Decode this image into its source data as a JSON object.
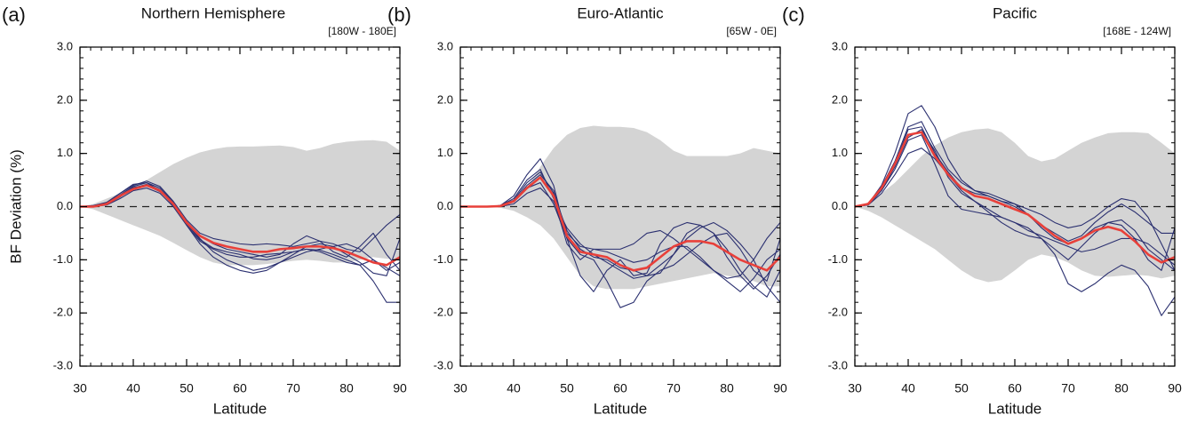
{
  "chart_data": [
    {
      "type": "line",
      "panel_label": "(a)",
      "title": "Northern Hemisphere",
      "region": "[180W - 180E]",
      "xlabel": "Latitude",
      "ylabel": "BF Deviation (%)",
      "xlim": [
        30,
        90
      ],
      "xticks": [
        30,
        40,
        50,
        60,
        70,
        80,
        90
      ],
      "xminor_step": 2,
      "ylim": [
        -3,
        3
      ],
      "yticks": [
        {
          "value": 3,
          "label": "3.0"
        },
        {
          "value": 2,
          "label": "2.0"
        },
        {
          "value": 1,
          "label": "1.0"
        },
        {
          "value": 0,
          "label": "0.0"
        },
        {
          "value": -1,
          "label": "-1.0"
        },
        {
          "value": -2,
          "label": "-2.0"
        },
        {
          "value": -3,
          "label": "-3.0"
        }
      ],
      "yminor_step": 0.2,
      "grid": false,
      "zero_line": {
        "value": 0,
        "dashed": true
      },
      "x": [
        30,
        32.5,
        35,
        37.5,
        40,
        42.5,
        45,
        47.5,
        50,
        52.5,
        55,
        57.5,
        60,
        62.5,
        65,
        67.5,
        70,
        72.5,
        75,
        77.5,
        80,
        82.5,
        85,
        87.5,
        90
      ],
      "band": {
        "color": "#d4d4d4",
        "upper": [
          0,
          0.05,
          0.15,
          0.25,
          0.38,
          0.5,
          0.65,
          0.8,
          0.92,
          1.02,
          1.08,
          1.12,
          1.13,
          1.13,
          1.14,
          1.15,
          1.12,
          1.05,
          1.1,
          1.18,
          1.22,
          1.24,
          1.25,
          1.22,
          1.05
        ],
        "lower": [
          0,
          -0.05,
          -0.15,
          -0.25,
          -0.35,
          -0.45,
          -0.55,
          -0.68,
          -0.82,
          -0.95,
          -1.05,
          -1.1,
          -1.1,
          -1.1,
          -1.08,
          -1.05,
          -1.02,
          -1.0,
          -1.02,
          -1.05,
          -1.05,
          -1.0,
          -0.95,
          -0.98,
          -1.0
        ]
      },
      "series": [
        {
          "color": "#2b3070",
          "values": [
            0,
            0.02,
            0.08,
            0.25,
            0.4,
            0.48,
            0.38,
            0.1,
            -0.25,
            -0.5,
            -0.6,
            -0.65,
            -0.7,
            -0.72,
            -0.7,
            -0.72,
            -0.75,
            -0.7,
            -0.65,
            -0.7,
            -0.8,
            -0.85,
            -0.6,
            -0.35,
            -0.15
          ]
        },
        {
          "color": "#2b3070",
          "values": [
            0,
            0,
            0.03,
            0.15,
            0.3,
            0.35,
            0.25,
            0,
            -0.35,
            -0.65,
            -0.8,
            -0.9,
            -0.95,
            -0.95,
            -0.9,
            -0.88,
            -0.85,
            -0.8,
            -0.82,
            -0.9,
            -1.0,
            -1.1,
            -1.4,
            -1.8,
            -1.8
          ]
        },
        {
          "color": "#2b3070",
          "values": [
            0,
            0.01,
            0.06,
            0.22,
            0.38,
            0.45,
            0.35,
            0.08,
            -0.3,
            -0.6,
            -0.85,
            -1.0,
            -1.1,
            -1.2,
            -1.15,
            -1.05,
            -0.95,
            -0.85,
            -0.8,
            -0.75,
            -0.7,
            -0.8,
            -1.0,
            -1.2,
            -1.05
          ]
        },
        {
          "color": "#2b3070",
          "values": [
            0,
            0,
            0.04,
            0.18,
            0.35,
            0.42,
            0.32,
            0.05,
            -0.35,
            -0.7,
            -0.95,
            -1.1,
            -1.2,
            -1.25,
            -1.2,
            -1.05,
            -0.9,
            -0.75,
            -0.7,
            -0.75,
            -0.9,
            -1.05,
            -1.25,
            -1.3,
            -0.6
          ]
        },
        {
          "color": "#2b3070",
          "values": [
            0,
            0.02,
            0.07,
            0.25,
            0.42,
            0.45,
            0.3,
            0.02,
            -0.28,
            -0.55,
            -0.7,
            -0.8,
            -0.85,
            -0.9,
            -0.95,
            -0.9,
            -0.7,
            -0.55,
            -0.65,
            -0.85,
            -0.95,
            -0.75,
            -0.5,
            -0.9,
            -1.2
          ]
        },
        {
          "color": "#2b3070",
          "values": [
            0,
            0,
            0.05,
            0.2,
            0.36,
            0.4,
            0.28,
            0.05,
            -0.32,
            -0.62,
            -0.78,
            -0.85,
            -0.9,
            -0.98,
            -1.0,
            -0.95,
            -0.85,
            -0.8,
            -0.85,
            -0.95,
            -1.05,
            -1.1,
            -1.0,
            -1.15,
            -1.3
          ]
        },
        {
          "color": "#e8403a",
          "values": [
            0,
            0,
            0.05,
            0.2,
            0.33,
            0.4,
            0.3,
            0.05,
            -0.3,
            -0.55,
            -0.68,
            -0.75,
            -0.8,
            -0.85,
            -0.85,
            -0.8,
            -0.78,
            -0.75,
            -0.75,
            -0.78,
            -0.85,
            -0.95,
            -1.05,
            -1.1,
            -0.95
          ]
        }
      ]
    },
    {
      "type": "line",
      "panel_label": "(b)",
      "title": "Euro-Atlantic",
      "region": "[65W - 0E]",
      "xlabel": "Latitude",
      "xlim": [
        30,
        90
      ],
      "xticks": [
        30,
        40,
        50,
        60,
        70,
        80,
        90
      ],
      "xminor_step": 2,
      "ylim": [
        -3,
        3
      ],
      "yticks": [
        {
          "value": 3,
          "label": "3.0"
        },
        {
          "value": 2,
          "label": "2.0"
        },
        {
          "value": 1,
          "label": "1.0"
        },
        {
          "value": 0,
          "label": "0.0"
        },
        {
          "value": -1,
          "label": "-1.0"
        },
        {
          "value": -2,
          "label": "-2.0"
        },
        {
          "value": -3,
          "label": "-3.0"
        }
      ],
      "yminor_step": 0.2,
      "grid": false,
      "zero_line": {
        "value": 0,
        "dashed": true
      },
      "x": [
        30,
        32.5,
        35,
        37.5,
        40,
        42.5,
        45,
        47.5,
        50,
        52.5,
        55,
        57.5,
        60,
        62.5,
        65,
        67.5,
        70,
        72.5,
        75,
        77.5,
        80,
        82.5,
        85,
        87.5,
        90
      ],
      "band": {
        "color": "#d4d4d4",
        "upper": [
          0,
          0,
          0,
          0.02,
          0.08,
          0.35,
          0.75,
          1.1,
          1.35,
          1.48,
          1.52,
          1.5,
          1.5,
          1.48,
          1.4,
          1.25,
          1.05,
          0.95,
          0.95,
          0.95,
          0.95,
          1.0,
          1.1,
          1.05,
          1.0
        ],
        "lower": [
          0,
          0,
          0,
          -0.02,
          -0.08,
          -0.2,
          -0.35,
          -0.6,
          -0.95,
          -1.3,
          -1.5,
          -1.55,
          -1.55,
          -1.55,
          -1.5,
          -1.45,
          -1.4,
          -1.35,
          -1.3,
          -1.25,
          -1.3,
          -1.35,
          -1.4,
          -1.5,
          -1.5
        ]
      },
      "series": [
        {
          "color": "#2b3070",
          "values": [
            0,
            0,
            0,
            0.02,
            0.2,
            0.6,
            0.9,
            0.4,
            -0.6,
            -1.3,
            -1.6,
            -1.2,
            -1.0,
            -1.3,
            -1.25,
            -0.7,
            -0.4,
            -0.3,
            -0.35,
            -0.5,
            -0.8,
            -1.2,
            -1.5,
            -1.7,
            -1.2
          ]
        },
        {
          "color": "#2b3070",
          "values": [
            0,
            0,
            0,
            0.01,
            0.1,
            0.35,
            0.45,
            0.05,
            -0.6,
            -0.9,
            -1.0,
            -1.4,
            -1.9,
            -1.8,
            -1.4,
            -1.2,
            -1.1,
            -0.9,
            -0.7,
            -0.55,
            -0.5,
            -0.8,
            -1.2,
            -1.4,
            -0.6
          ]
        },
        {
          "color": "#2b3070",
          "values": [
            0,
            0,
            0,
            0.02,
            0.15,
            0.5,
            0.7,
            0.15,
            -0.7,
            -1.0,
            -0.8,
            -0.8,
            -0.8,
            -0.7,
            -0.5,
            -0.45,
            -0.6,
            -0.8,
            -1.0,
            -1.2,
            -1.35,
            -1.3,
            -1.0,
            -0.6,
            -0.3
          ]
        },
        {
          "color": "#2b3070",
          "values": [
            0,
            0,
            0,
            0,
            0.05,
            0.25,
            0.35,
            0.1,
            -0.4,
            -0.7,
            -0.9,
            -1.05,
            -1.2,
            -1.35,
            -1.3,
            -1.1,
            -0.9,
            -0.6,
            -0.4,
            -0.3,
            -0.45,
            -0.7,
            -1.0,
            -1.5,
            -1.8
          ]
        },
        {
          "color": "#2b3070",
          "values": [
            0,
            0,
            0,
            0.01,
            0.1,
            0.4,
            0.6,
            0.3,
            -0.5,
            -0.75,
            -0.8,
            -0.85,
            -0.95,
            -1.05,
            -1.0,
            -0.85,
            -0.75,
            -0.75,
            -0.95,
            -1.2,
            -1.4,
            -1.6,
            -1.35,
            -1.0,
            -0.8
          ]
        },
        {
          "color": "#2b3070",
          "values": [
            0,
            0,
            0,
            0.02,
            0.12,
            0.45,
            0.65,
            0.25,
            -0.45,
            -0.8,
            -0.95,
            -1.0,
            -1.15,
            -1.2,
            -1.3,
            -1.25,
            -0.9,
            -0.5,
            -0.35,
            -0.5,
            -0.95,
            -1.3,
            -1.55,
            -1.3,
            -0.9
          ]
        },
        {
          "color": "#e8403a",
          "values": [
            0,
            0,
            0,
            0.01,
            0.1,
            0.35,
            0.55,
            0.2,
            -0.55,
            -0.85,
            -0.9,
            -0.95,
            -1.1,
            -1.2,
            -1.15,
            -0.95,
            -0.75,
            -0.65,
            -0.65,
            -0.7,
            -0.85,
            -1.0,
            -1.1,
            -1.2,
            -0.95
          ]
        }
      ]
    },
    {
      "type": "line",
      "panel_label": "(c)",
      "title": "Pacific",
      "region": "[168E - 124W]",
      "xlabel": "Latitude",
      "xlim": [
        30,
        90
      ],
      "xticks": [
        30,
        40,
        50,
        60,
        70,
        80,
        90
      ],
      "xminor_step": 2,
      "ylim": [
        -3,
        3
      ],
      "yticks": [
        {
          "value": 3,
          "label": "3.0"
        },
        {
          "value": 2,
          "label": "2.0"
        },
        {
          "value": 1,
          "label": "1.0"
        },
        {
          "value": 0,
          "label": "0.0"
        },
        {
          "value": -1,
          "label": "-1.0"
        },
        {
          "value": -2,
          "label": "-2.0"
        },
        {
          "value": -3,
          "label": "-3.0"
        }
      ],
      "yminor_step": 0.2,
      "grid": false,
      "zero_line": {
        "value": 0,
        "dashed": true
      },
      "x": [
        30,
        32.5,
        35,
        37.5,
        40,
        42.5,
        45,
        47.5,
        50,
        52.5,
        55,
        57.5,
        60,
        62.5,
        65,
        67.5,
        70,
        72.5,
        75,
        77.5,
        80,
        82.5,
        85,
        87.5,
        90
      ],
      "band": {
        "color": "#d4d4d4",
        "upper": [
          0,
          0.08,
          0.25,
          0.45,
          0.7,
          0.95,
          1.15,
          1.3,
          1.4,
          1.45,
          1.47,
          1.4,
          1.2,
          0.95,
          0.85,
          0.9,
          1.05,
          1.2,
          1.3,
          1.38,
          1.4,
          1.4,
          1.38,
          1.2,
          1.0
        ],
        "lower": [
          0,
          -0.08,
          -0.2,
          -0.35,
          -0.5,
          -0.65,
          -0.8,
          -1.0,
          -1.2,
          -1.35,
          -1.42,
          -1.38,
          -1.2,
          -1.0,
          -0.9,
          -0.95,
          -1.05,
          -1.2,
          -1.3,
          -1.32,
          -1.3,
          -1.28,
          -1.3,
          -1.35,
          -1.3
        ]
      },
      "series": [
        {
          "color": "#2b3070",
          "values": [
            0,
            0.05,
            0.4,
            1.0,
            1.75,
            1.9,
            1.5,
            0.9,
            0.5,
            0.3,
            0.2,
            0.1,
            0,
            -0.15,
            -0.35,
            -0.5,
            -0.65,
            -0.55,
            -0.3,
            -0.1,
            0.05,
            -0.1,
            -0.3,
            -0.5,
            -0.5
          ]
        },
        {
          "color": "#2b3070",
          "values": [
            0,
            0.03,
            0.3,
            0.7,
            1.25,
            1.35,
            0.8,
            0.2,
            -0.05,
            -0.1,
            -0.15,
            -0.2,
            -0.3,
            -0.4,
            -0.6,
            -0.8,
            -1.0,
            -0.75,
            -0.5,
            -0.3,
            -0.25,
            -0.45,
            -0.8,
            -1.0,
            -1.2
          ]
        },
        {
          "color": "#2b3070",
          "values": [
            0,
            0.04,
            0.35,
            0.8,
            1.45,
            1.5,
            1.0,
            0.65,
            0.35,
            0.25,
            0.2,
            0.1,
            0.05,
            -0.05,
            -0.15,
            -0.3,
            -0.4,
            -0.35,
            -0.2,
            0,
            0.15,
            0.1,
            -0.2,
            -0.7,
            -1.2
          ]
        },
        {
          "color": "#2b3070",
          "values": [
            0,
            0.03,
            0.25,
            0.6,
            1.0,
            1.1,
            0.9,
            0.6,
            0.3,
            0.1,
            -0.1,
            -0.3,
            -0.45,
            -0.55,
            -0.6,
            -0.9,
            -1.45,
            -1.6,
            -1.45,
            -1.25,
            -1.1,
            -1.2,
            -1.5,
            -2.05,
            -1.7
          ]
        },
        {
          "color": "#2b3070",
          "values": [
            0,
            0.05,
            0.38,
            0.85,
            1.5,
            1.6,
            1.1,
            0.7,
            0.45,
            0.3,
            0.25,
            0.15,
            0.05,
            -0.15,
            -0.4,
            -0.6,
            -0.7,
            -0.6,
            -0.4,
            -0.3,
            -0.35,
            -0.6,
            -1.0,
            -1.2,
            -0.4
          ]
        },
        {
          "color": "#2b3070",
          "values": [
            0,
            0.04,
            0.3,
            0.75,
            1.3,
            1.45,
            1.05,
            0.55,
            0.25,
            0.1,
            -0.05,
            -0.2,
            -0.3,
            -0.45,
            -0.55,
            -0.65,
            -0.75,
            -0.85,
            -0.8,
            -0.7,
            -0.6,
            -0.6,
            -0.7,
            -0.9,
            -1.1
          ]
        },
        {
          "color": "#e8403a",
          "values": [
            0,
            0.05,
            0.35,
            0.8,
            1.35,
            1.4,
            0.95,
            0.6,
            0.35,
            0.2,
            0.15,
            0.05,
            -0.05,
            -0.15,
            -0.35,
            -0.55,
            -0.7,
            -0.6,
            -0.45,
            -0.38,
            -0.45,
            -0.65,
            -0.9,
            -1.05,
            -0.95
          ]
        }
      ]
    }
  ]
}
